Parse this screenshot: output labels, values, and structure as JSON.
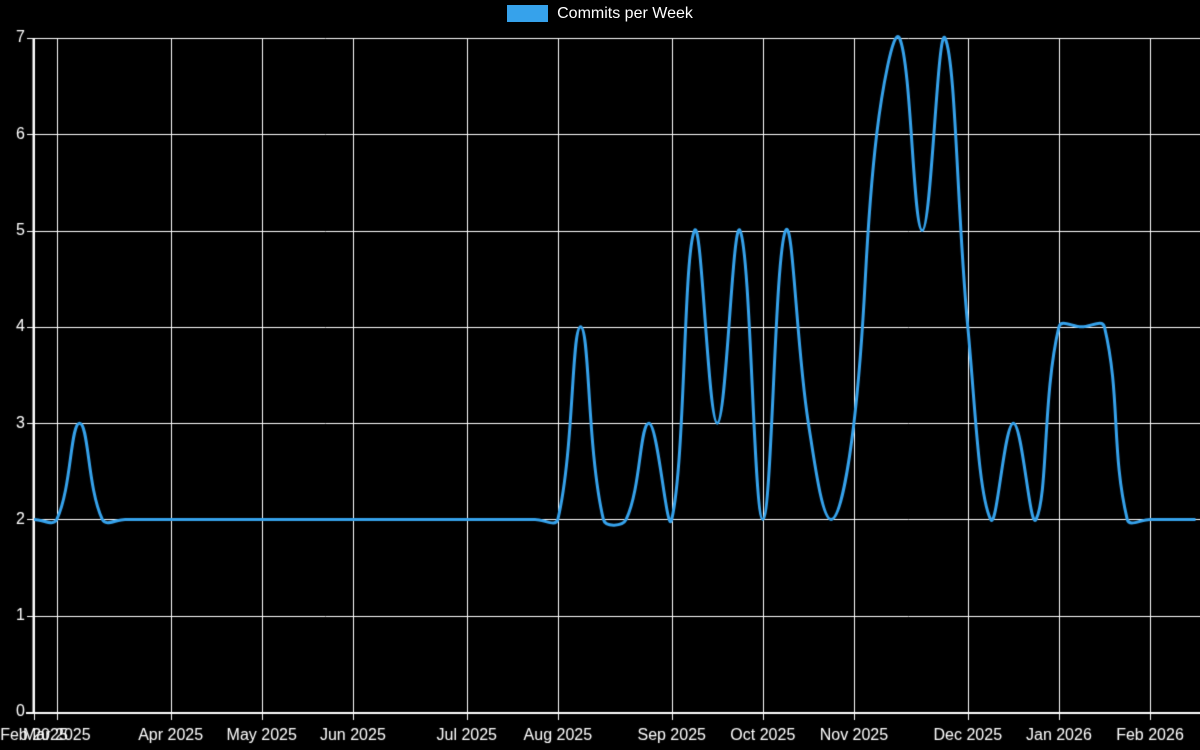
{
  "chart_data": {
    "type": "line",
    "title": "",
    "background": "#000000",
    "grid_color": "#ffffff",
    "text_color": "#ffffff",
    "grid": "on",
    "legend_position": "top-center",
    "ylim": [
      0,
      7
    ],
    "y_ticks": [
      "0",
      "1",
      "2",
      "3",
      "4",
      "5",
      "6",
      "7"
    ],
    "x_ticks": [
      {
        "label": "Feb 2025",
        "week": 0
      },
      {
        "label": "Mar 2025",
        "week": 1
      },
      {
        "label": "Apr 2025",
        "week": 6
      },
      {
        "label": "May 2025",
        "week": 10
      },
      {
        "label": "Jun 2025",
        "week": 14
      },
      {
        "label": "Jul 2025",
        "week": 19
      },
      {
        "label": "Aug 2025",
        "week": 23
      },
      {
        "label": "Sep 2025",
        "week": 28
      },
      {
        "label": "Oct 2025",
        "week": 32
      },
      {
        "label": "Nov 2025",
        "week": 36
      },
      {
        "label": "Dec 2025",
        "week": 41
      },
      {
        "label": "Jan 2026",
        "week": 45
      },
      {
        "label": "Feb 2026",
        "week": 49
      }
    ],
    "series": [
      {
        "name": "Commits per Week",
        "color": "#36a2eb",
        "line_width": 3,
        "tension": 0.4,
        "values": [
          2,
          2,
          3,
          2,
          2,
          2,
          2,
          2,
          2,
          2,
          2,
          2,
          2,
          2,
          2,
          2,
          2,
          2,
          2,
          2,
          2,
          2,
          2,
          2,
          4,
          2,
          2,
          3,
          2,
          5,
          3,
          5,
          2,
          5,
          3,
          2,
          3,
          6,
          7,
          5,
          7,
          4,
          2,
          3,
          2,
          4,
          4,
          4,
          2,
          2,
          2,
          2
        ]
      }
    ]
  }
}
